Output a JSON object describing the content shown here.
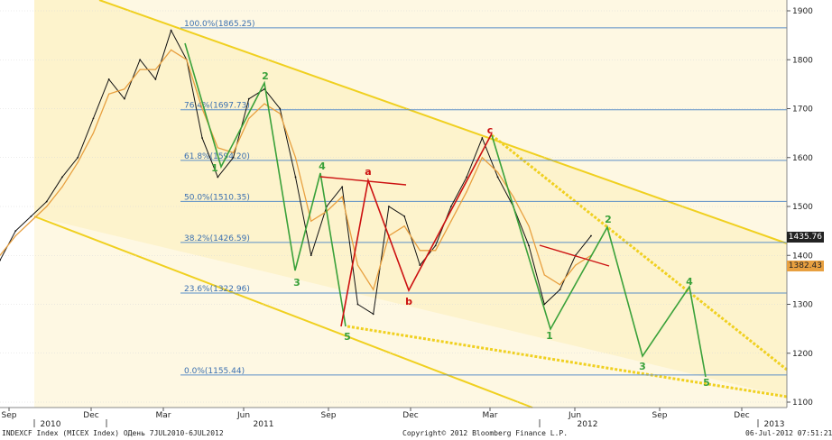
{
  "chart_data": {
    "type": "line",
    "title": "",
    "ylim": [
      1100,
      1900
    ],
    "y_ticks": [
      1100,
      1200,
      1300,
      1400,
      1500,
      1600,
      1700,
      1800,
      1900
    ],
    "x_tick_labels": [
      {
        "label": "Sep",
        "year": ""
      },
      {
        "label": "Dec",
        "year": ""
      },
      {
        "label": "Mar",
        "year": ""
      },
      {
        "label": "Jun",
        "year": ""
      },
      {
        "label": "Sep",
        "year": ""
      },
      {
        "label": "Dec",
        "year": ""
      },
      {
        "label": "Mar",
        "year": ""
      },
      {
        "label": "Jun",
        "year": ""
      },
      {
        "label": "Sep",
        "year": ""
      },
      {
        "label": "Dec",
        "year": ""
      }
    ],
    "year_labels": [
      "2010",
      "2011",
      "2012",
      "2013"
    ],
    "series": [
      {
        "values": [
          1390,
          1450,
          1480,
          1510,
          1560,
          1600,
          1680,
          1760,
          1720,
          1800,
          1760,
          1860,
          1800,
          1640,
          1560,
          1600,
          1720,
          1740,
          1700,
          1560,
          1400,
          1500,
          1540,
          1300,
          1280,
          1500,
          1480,
          1380,
          1420,
          1500,
          1560,
          1640,
          1560,
          1500,
          1420,
          1300,
          1330,
          1400,
          1440
        ]
      },
      {
        "values": [
          1400,
          1440,
          1470,
          1500,
          1540,
          1590,
          1650,
          1730,
          1740,
          1780,
          1780,
          1820,
          1800,
          1700,
          1620,
          1610,
          1680,
          1710,
          1690,
          1600,
          1470,
          1490,
          1520,
          1380,
          1330,
          1440,
          1460,
          1410,
          1410,
          1470,
          1530,
          1600,
          1570,
          1520,
          1460,
          1360,
          1340,
          1380,
          1400
        ]
      }
    ],
    "fib_levels": [
      {
        "label": "100.0%(1865.25)",
        "value": 1865.25
      },
      {
        "label": "76.4%(1697.73)",
        "value": 1697.73
      },
      {
        "label": "61.8%(1594.20)",
        "value": 1594.2
      },
      {
        "label": "50.0%(1510.35)",
        "value": 1510.35
      },
      {
        "label": "38.2%(1426.59)",
        "value": 1426.59
      },
      {
        "label": "23.6%(1322.96)",
        "value": 1322.96
      },
      {
        "label": "0.0%(1155.44)",
        "value": 1155.44
      }
    ],
    "wave_labels_green": [
      "1",
      "2",
      "3",
      "4",
      "5",
      "1",
      "2",
      "3",
      "4",
      "5"
    ],
    "wave_labels_red": [
      "a",
      "b",
      "c"
    ],
    "last_price": "1435.76",
    "ma_price": "1382.43"
  },
  "footer": {
    "left": "INDEXCF Index (MICEX Index) ОДень 7JUL2010-6JUL2012",
    "center": "Copyright© 2012 Bloomberg Finance L.P.",
    "right": "06-Jul-2012 07:51:21"
  },
  "colors": {
    "channel_fill": "#fdf3cc",
    "channel_line": "#f0d020",
    "wave_green": "#3aa13a",
    "wave_red": "#cc1111",
    "fib_line": "#5b8fc8",
    "price_line": "#111111",
    "ma_line": "#e8a040",
    "last_price_bg": "#222222",
    "ma_price_bg": "#e8a040"
  }
}
